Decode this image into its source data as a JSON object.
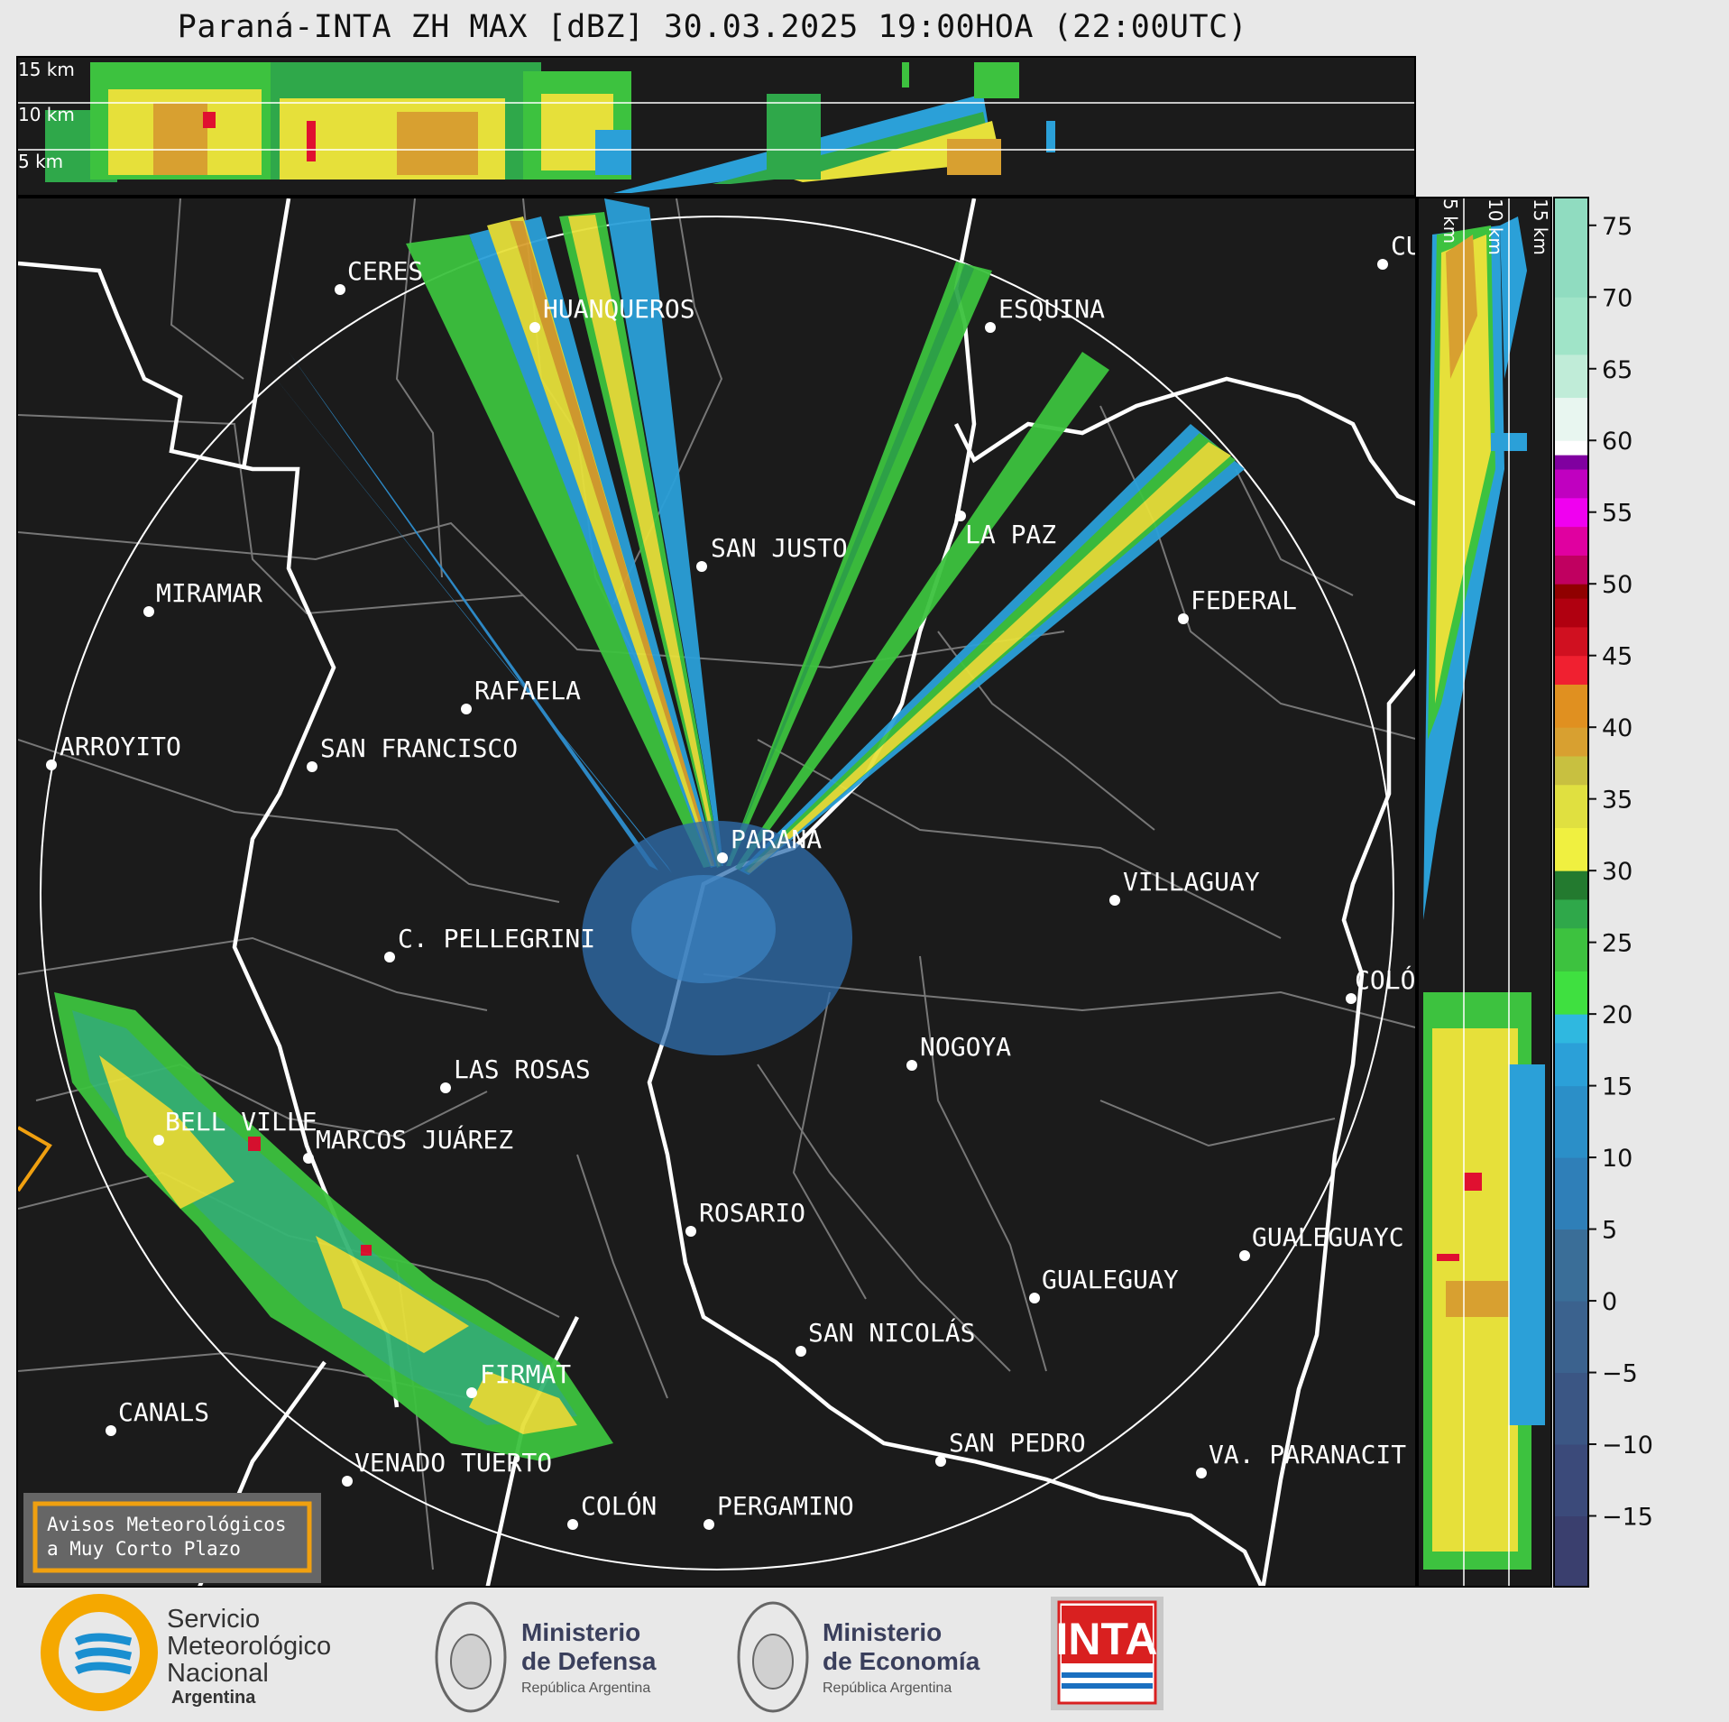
{
  "title": "Paraná-INTA ZH MAX [dBZ] 30.03.2025 19:00HOA (22:00UTC)",
  "height_labels": [
    "15 km",
    "10 km",
    "5 km"
  ],
  "cities": [
    {
      "name": "CERES"
    },
    {
      "name": "HUANQUEROS"
    },
    {
      "name": "ESQUINA"
    },
    {
      "name": "CU"
    },
    {
      "name": "LA PAZ"
    },
    {
      "name": "SAN JUSTO"
    },
    {
      "name": "MIRAMAR"
    },
    {
      "name": "FEDERAL"
    },
    {
      "name": "RAFAELA"
    },
    {
      "name": "ARROYITO"
    },
    {
      "name": "SAN FRANCISCO"
    },
    {
      "name": "PARANÁ"
    },
    {
      "name": "VILLAGUAY"
    },
    {
      "name": "C. PELLEGRINI"
    },
    {
      "name": "COLÓ"
    },
    {
      "name": "NOGOYA"
    },
    {
      "name": "LAS ROSAS"
    },
    {
      "name": "BELL VILLE"
    },
    {
      "name": "MARCOS JUÁREZ"
    },
    {
      "name": "ROSARIO"
    },
    {
      "name": "GUALEGUAYC"
    },
    {
      "name": "GUALEGUAY"
    },
    {
      "name": "SAN NICOLÁS"
    },
    {
      "name": "FIRMAT"
    },
    {
      "name": "CANALS"
    },
    {
      "name": "SAN PEDRO"
    },
    {
      "name": "VA. PARANACIT"
    },
    {
      "name": "VENADO TUERTO"
    },
    {
      "name": "COLÓN"
    },
    {
      "name": "PERGAMINO"
    }
  ],
  "warning_box": {
    "line1": "Avisos Meteorológicos",
    "line2": "a Muy Corto Plazo",
    "border_color": "#f0a010"
  },
  "colorbar": {
    "unit": "dBZ",
    "ticks": [
      "75",
      "70",
      "65",
      "60",
      "55",
      "50",
      "45",
      "40",
      "35",
      "30",
      "25",
      "20",
      "15",
      "10",
      "5",
      "0",
      "−5",
      "−10",
      "−15"
    ],
    "range": [
      -20,
      77
    ]
  },
  "logos": {
    "smn": {
      "line1": "Servicio",
      "line2": "Meteorológico",
      "line3": "Nacional",
      "line4": "Argentina"
    },
    "defensa": {
      "line1": "Ministerio",
      "line2": "de Defensa",
      "line3": "República Argentina"
    },
    "economia": {
      "line1": "Ministerio",
      "line2": "de Economía",
      "line3": "República Argentina"
    },
    "inta": {
      "text": "INTA"
    }
  },
  "colors": {
    "map_bg": "#1b1b1b",
    "border": "#ffffff",
    "dept_border": "#777777",
    "warning": "#f0a010"
  }
}
